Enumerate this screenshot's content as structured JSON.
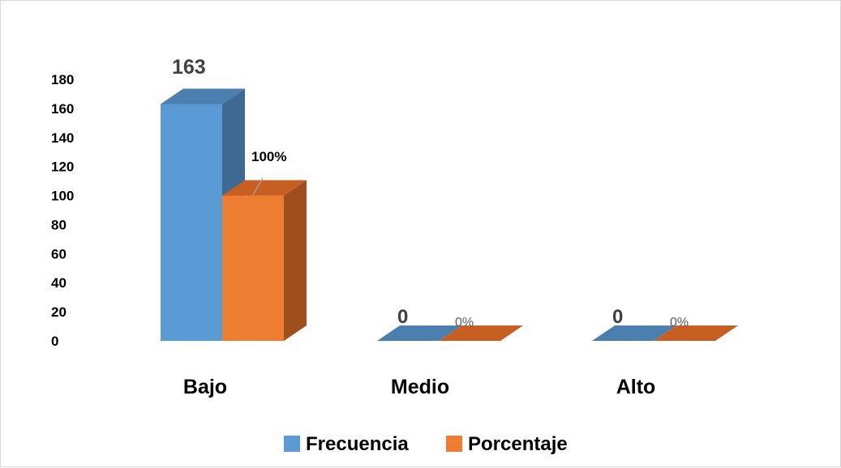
{
  "chart_data": {
    "type": "bar",
    "categories": [
      "Bajo",
      "Medio",
      "Alto"
    ],
    "series": [
      {
        "name": "Frecuencia",
        "values": [
          163,
          0,
          0
        ],
        "labels": [
          "163",
          "0",
          "0"
        ],
        "color": "#5b9bd5",
        "side_color": "#3e6a91",
        "top_color": "#4a7fae"
      },
      {
        "name": "Porcentaje",
        "values": [
          100,
          0,
          0
        ],
        "labels": [
          "100%",
          "0%",
          "0%"
        ],
        "color": "#ed7d31",
        "side_color": "#9e4f1c",
        "top_color": "#c85f22"
      }
    ],
    "yticks": [
      "0",
      "20",
      "40",
      "60",
      "80",
      "100",
      "120",
      "140",
      "160",
      "180"
    ],
    "ylim": [
      0,
      180
    ],
    "legend_position": "bottom",
    "grid": false,
    "style": "3d-column"
  }
}
